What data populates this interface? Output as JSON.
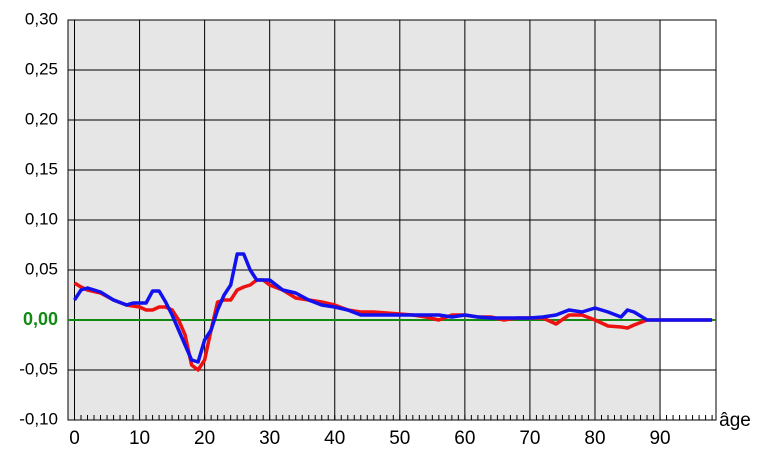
{
  "chart_data": {
    "type": "line",
    "x_label": "âge",
    "x": [
      0,
      1,
      2,
      4,
      6,
      8,
      9,
      10,
      11,
      12,
      13,
      14,
      15,
      16,
      17,
      18,
      19,
      20,
      21,
      22,
      23,
      24,
      25,
      26,
      27,
      28,
      29,
      30,
      32,
      34,
      36,
      38,
      40,
      42,
      44,
      46,
      48,
      50,
      52,
      54,
      56,
      58,
      60,
      62,
      64,
      66,
      68,
      70,
      72,
      74,
      76,
      78,
      80,
      82,
      84,
      85,
      86,
      88,
      90,
      98
    ],
    "series": [
      {
        "color": "#ee1111",
        "values": [
          0.037,
          0.033,
          0.03,
          0.027,
          0.02,
          0.015,
          0.014,
          0.013,
          0.01,
          0.01,
          0.013,
          0.013,
          0.01,
          0.0,
          -0.015,
          -0.045,
          -0.05,
          -0.04,
          -0.01,
          0.018,
          0.02,
          0.02,
          0.03,
          0.033,
          0.035,
          0.04,
          0.04,
          0.035,
          0.03,
          0.022,
          0.02,
          0.018,
          0.015,
          0.01,
          0.008,
          0.008,
          0.007,
          0.006,
          0.005,
          0.003,
          0.0,
          0.005,
          0.005,
          0.003,
          0.003,
          0.0,
          0.002,
          0.002,
          0.002,
          -0.004,
          0.005,
          0.005,
          0.0,
          -0.006,
          -0.007,
          -0.008,
          -0.005,
          0.0,
          0,
          0
        ]
      },
      {
        "color": "#1111ee",
        "values": [
          0.02,
          0.03,
          0.032,
          0.028,
          0.02,
          0.015,
          0.017,
          0.017,
          0.017,
          0.029,
          0.029,
          0.018,
          0.005,
          -0.01,
          -0.025,
          -0.04,
          -0.042,
          -0.02,
          -0.01,
          0.01,
          0.025,
          0.035,
          0.066,
          0.066,
          0.05,
          0.04,
          0.04,
          0.04,
          0.03,
          0.027,
          0.02,
          0.015,
          0.013,
          0.01,
          0.005,
          0.005,
          0.005,
          0.005,
          0.005,
          0.005,
          0.005,
          0.003,
          0.005,
          0.003,
          0.002,
          0.002,
          0.002,
          0.002,
          0.003,
          0.005,
          0.01,
          0.008,
          0.012,
          0.008,
          0.003,
          0.01,
          0.008,
          0.0,
          0,
          0
        ]
      }
    ],
    "xlim": [
      -1,
      98.6
    ],
    "xticks": [
      0,
      10,
      20,
      30,
      40,
      50,
      60,
      70,
      80,
      90
    ],
    "minor_tick_step": 1,
    "ylim": [
      -0.1,
      0.3
    ],
    "yticks": [
      {
        "value": -0.1,
        "label": "-0,10"
      },
      {
        "value": -0.05,
        "label": "-0,05"
      },
      {
        "value": 0,
        "label": "0,00"
      },
      {
        "value": 0.05,
        "label": "0,05"
      },
      {
        "value": 0.1,
        "label": "0,10"
      },
      {
        "value": 0.15,
        "label": "0,15"
      },
      {
        "value": 0.2,
        "label": "0,20"
      },
      {
        "value": 0.25,
        "label": "0,25"
      },
      {
        "value": 0.3,
        "label": "0,30"
      }
    ],
    "shade_to": 90,
    "shade_color": "#e6e6e6",
    "zero_line_color": "#138a13",
    "grid": true
  }
}
